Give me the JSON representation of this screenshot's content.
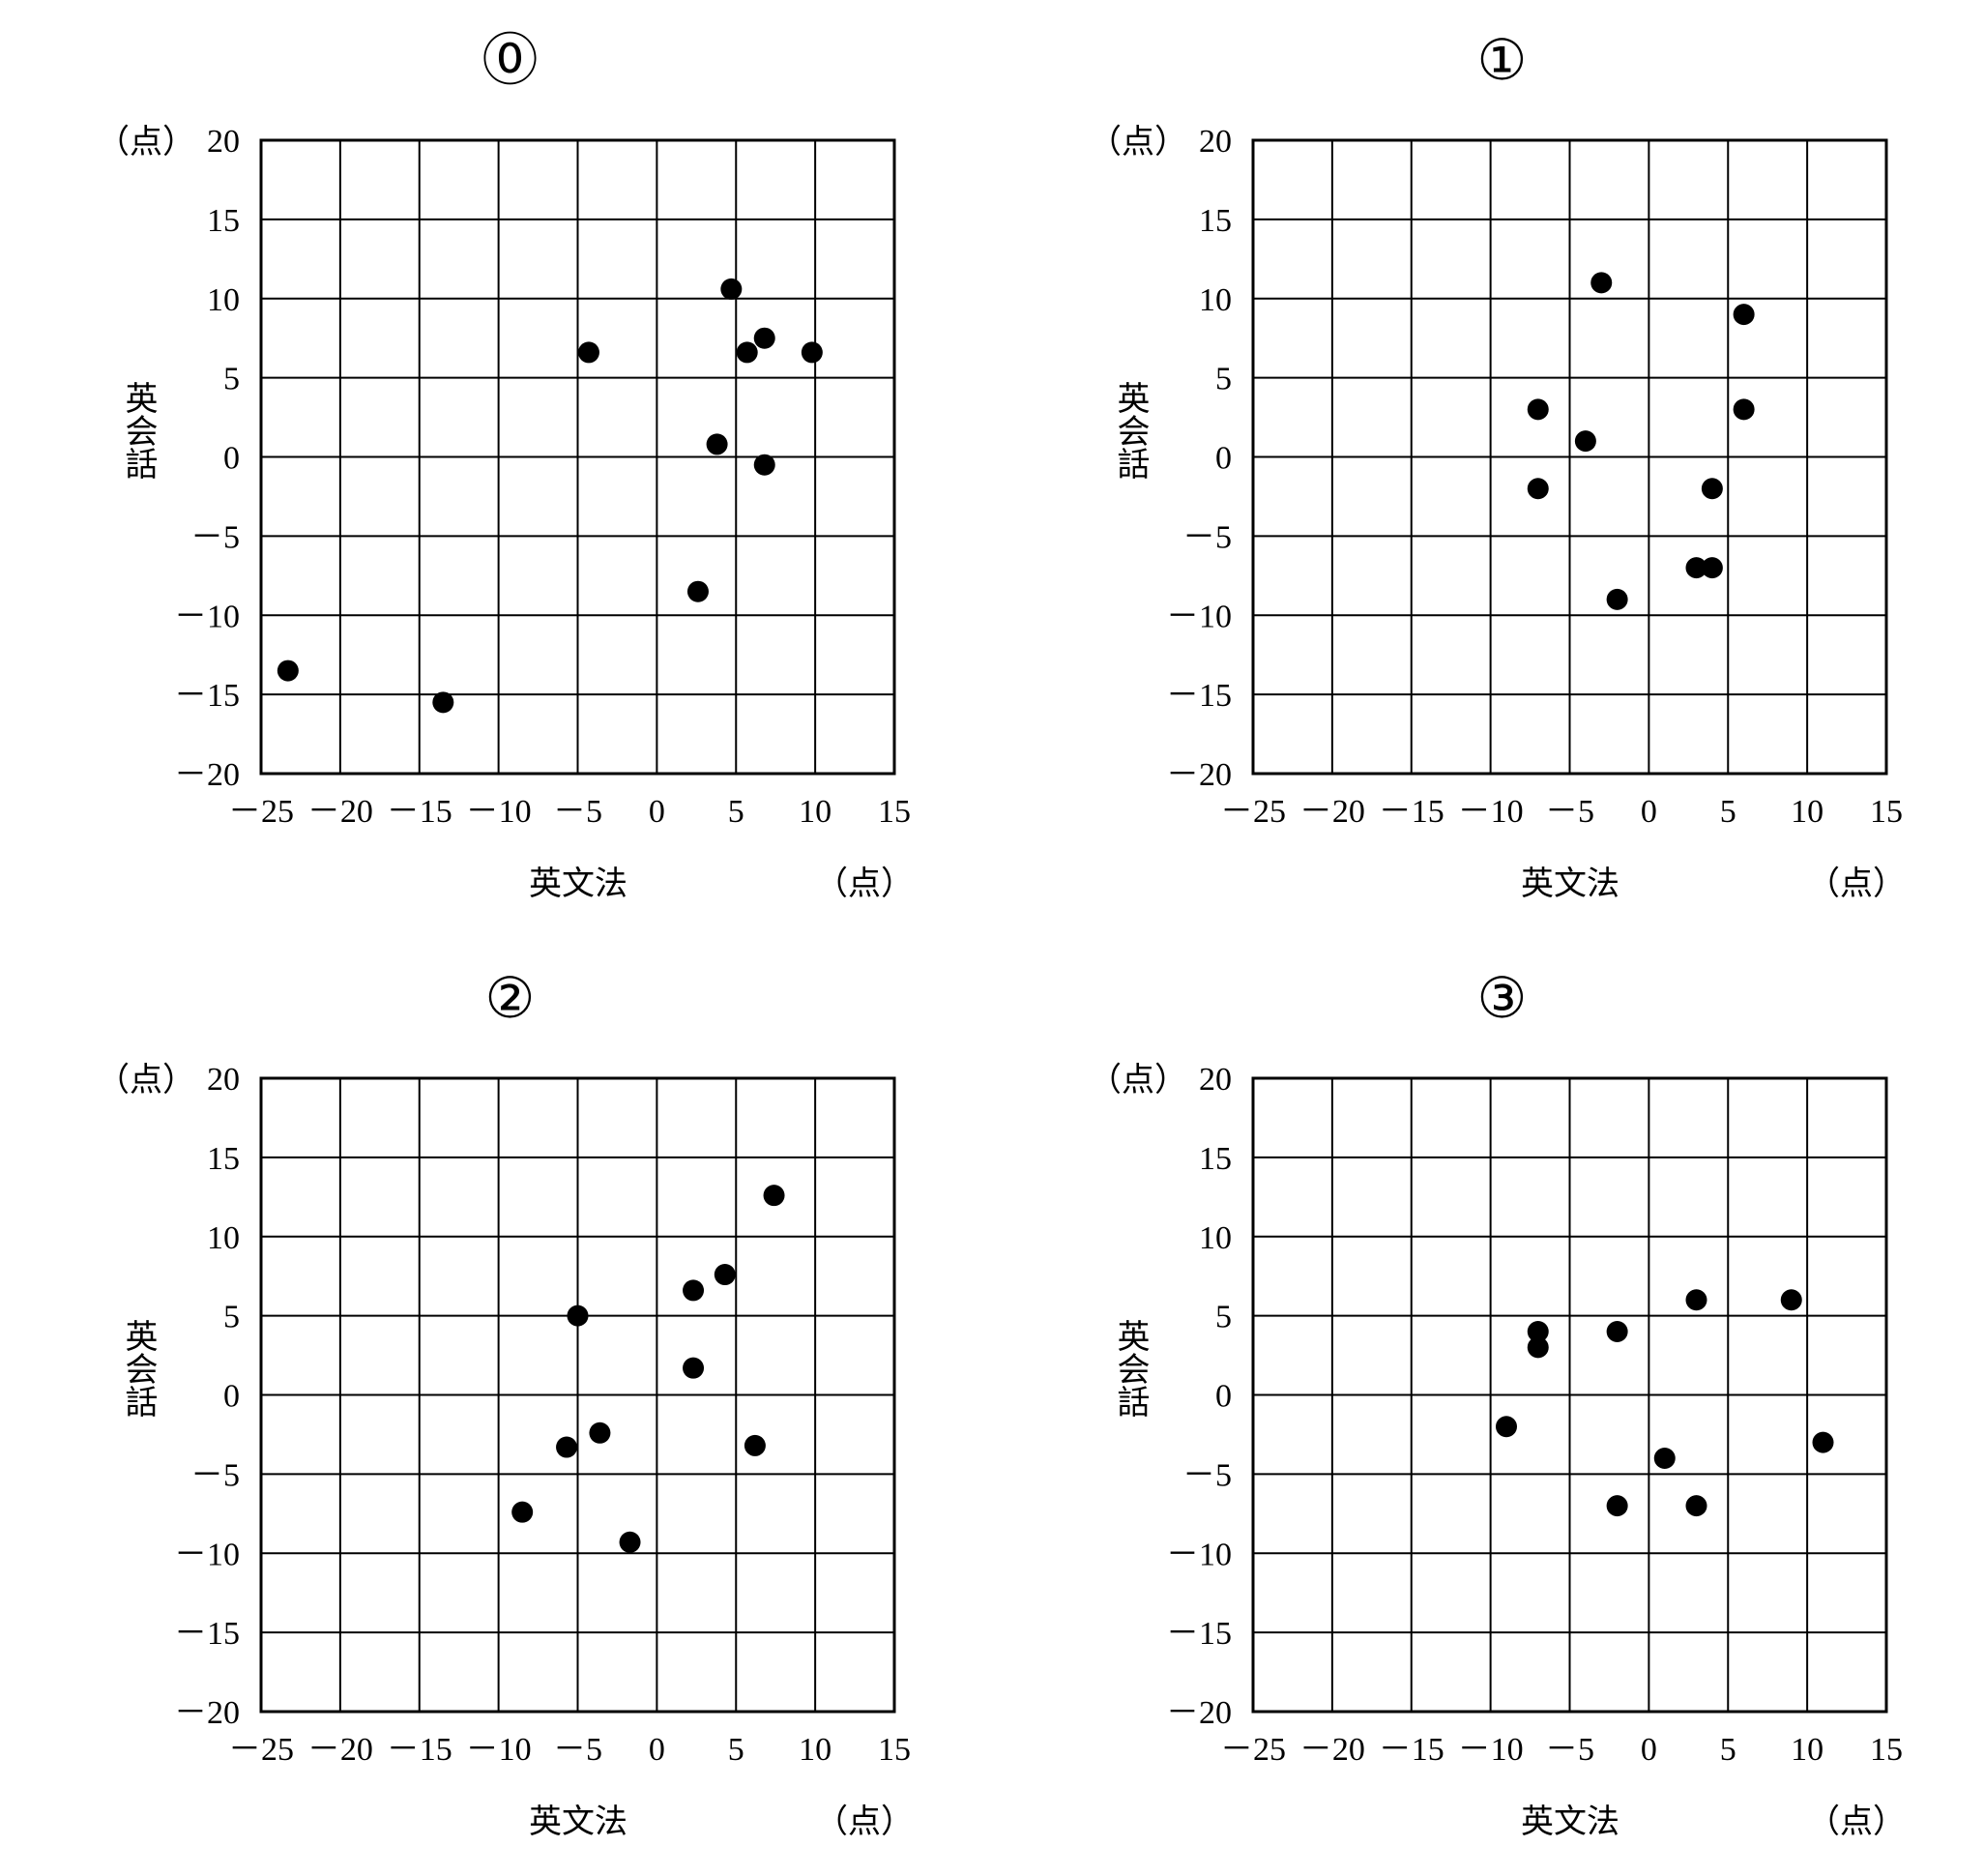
{
  "chart_data": [
    {
      "type": "scatter",
      "title": "⓪",
      "xlabel": "英文法",
      "ylabel": "英会話",
      "x_unit": "（点）",
      "y_unit": "（点）",
      "xlim": [
        -25,
        15
      ],
      "ylim": [
        -20,
        20
      ],
      "xticks": [
        -25,
        -20,
        -15,
        -10,
        -5,
        0,
        5,
        10,
        15
      ],
      "yticks": [
        20,
        15,
        10,
        5,
        0,
        -5,
        -10,
        -15,
        -20
      ],
      "xtick_labels": [
        "－25",
        "－20",
        "－15",
        "－10",
        "－5",
        "0",
        "5",
        "10",
        "15"
      ],
      "ytick_labels": [
        "20",
        "15",
        "10",
        "5",
        "0",
        "－5",
        "－10",
        "－15",
        "－20"
      ],
      "grid": true,
      "points": [
        {
          "x": -23.3,
          "y": -13.5
        },
        {
          "x": -13.5,
          "y": -15.5
        },
        {
          "x": -4.3,
          "y": 6.6
        },
        {
          "x": 2.6,
          "y": -8.5
        },
        {
          "x": 3.8,
          "y": 0.8
        },
        {
          "x": 4.7,
          "y": 10.6
        },
        {
          "x": 5.7,
          "y": 6.6
        },
        {
          "x": 6.8,
          "y": 7.5
        },
        {
          "x": 6.8,
          "y": -0.5
        },
        {
          "x": 9.8,
          "y": 6.6
        }
      ]
    },
    {
      "type": "scatter",
      "title": "①",
      "xlabel": "英文法",
      "ylabel": "英会話",
      "x_unit": "（点）",
      "y_unit": "（点）",
      "xlim": [
        -25,
        15
      ],
      "ylim": [
        -20,
        20
      ],
      "xticks": [
        -25,
        -20,
        -15,
        -10,
        -5,
        0,
        5,
        10,
        15
      ],
      "yticks": [
        20,
        15,
        10,
        5,
        0,
        -5,
        -10,
        -15,
        -20
      ],
      "xtick_labels": [
        "－25",
        "－20",
        "－15",
        "－10",
        "－5",
        "0",
        "5",
        "10",
        "15"
      ],
      "ytick_labels": [
        "20",
        "15",
        "10",
        "5",
        "0",
        "－5",
        "－10",
        "－15",
        "－20"
      ],
      "grid": true,
      "points": [
        {
          "x": -7,
          "y": 3
        },
        {
          "x": -7,
          "y": -2
        },
        {
          "x": -4,
          "y": 1
        },
        {
          "x": -3,
          "y": 11
        },
        {
          "x": -2,
          "y": -9
        },
        {
          "x": 3,
          "y": -7
        },
        {
          "x": 4,
          "y": -7
        },
        {
          "x": 4,
          "y": -2
        },
        {
          "x": 6,
          "y": 9
        },
        {
          "x": 6,
          "y": 3
        }
      ]
    },
    {
      "type": "scatter",
      "title": "②",
      "xlabel": "英文法",
      "ylabel": "英会話",
      "x_unit": "（点）",
      "y_unit": "（点）",
      "xlim": [
        -25,
        15
      ],
      "ylim": [
        -20,
        20
      ],
      "xticks": [
        -25,
        -20,
        -15,
        -10,
        -5,
        0,
        5,
        10,
        15
      ],
      "yticks": [
        20,
        15,
        10,
        5,
        0,
        -5,
        -10,
        -15,
        -20
      ],
      "xtick_labels": [
        "－25",
        "－20",
        "－15",
        "－10",
        "－5",
        "0",
        "5",
        "10",
        "15"
      ],
      "ytick_labels": [
        "20",
        "15",
        "10",
        "5",
        "0",
        "－5",
        "－10",
        "－15",
        "－20"
      ],
      "grid": true,
      "points": [
        {
          "x": -8.5,
          "y": -7.4
        },
        {
          "x": -5.7,
          "y": -3.3
        },
        {
          "x": -5.0,
          "y": 5.0
        },
        {
          "x": -3.6,
          "y": -2.4
        },
        {
          "x": -1.7,
          "y": -9.3
        },
        {
          "x": 2.3,
          "y": 6.6
        },
        {
          "x": 2.3,
          "y": 1.7
        },
        {
          "x": 4.3,
          "y": 7.6
        },
        {
          "x": 6.2,
          "y": -3.2
        },
        {
          "x": 7.4,
          "y": 12.6
        }
      ]
    },
    {
      "type": "scatter",
      "title": "③",
      "xlabel": "英文法",
      "ylabel": "英会話",
      "x_unit": "（点）",
      "y_unit": "（点）",
      "xlim": [
        -25,
        15
      ],
      "ylim": [
        -20,
        20
      ],
      "xticks": [
        -25,
        -20,
        -15,
        -10,
        -5,
        0,
        5,
        10,
        15
      ],
      "yticks": [
        20,
        15,
        10,
        5,
        0,
        -5,
        -10,
        -15,
        -20
      ],
      "xtick_labels": [
        "－25",
        "－20",
        "－15",
        "－10",
        "－5",
        "0",
        "5",
        "10",
        "15"
      ],
      "ytick_labels": [
        "20",
        "15",
        "10",
        "5",
        "0",
        "－5",
        "－10",
        "－15",
        "－20"
      ],
      "grid": true,
      "points": [
        {
          "x": -9,
          "y": -2
        },
        {
          "x": -7,
          "y": 4
        },
        {
          "x": -7,
          "y": 3
        },
        {
          "x": -2,
          "y": 4
        },
        {
          "x": -2,
          "y": -7
        },
        {
          "x": 1,
          "y": -4
        },
        {
          "x": 3,
          "y": 6
        },
        {
          "x": 3,
          "y": -7
        },
        {
          "x": 9,
          "y": 6
        },
        {
          "x": 11,
          "y": -3
        }
      ]
    }
  ]
}
